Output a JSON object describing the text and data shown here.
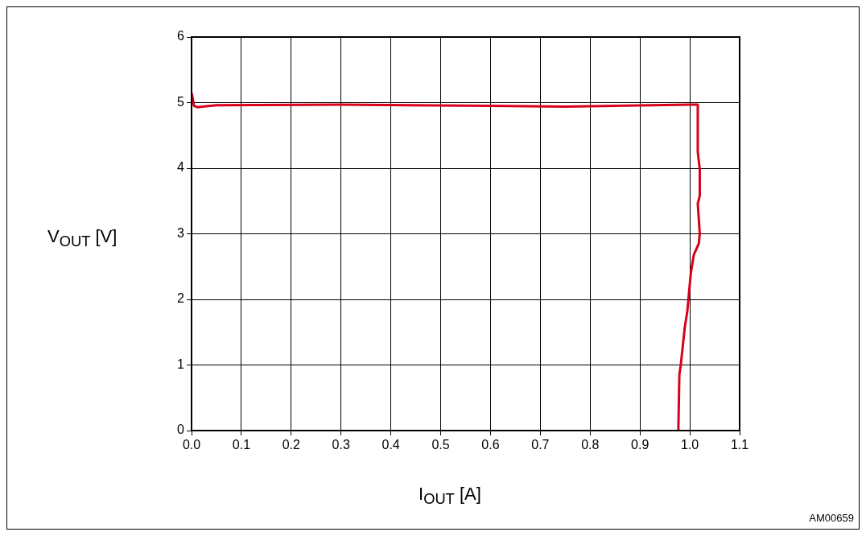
{
  "chart_data": {
    "type": "line",
    "xlabel": "I$_{OUT}$  [A]",
    "ylabel": "V$_{OUT}$  [V]",
    "annotations": [
      "AM00659"
    ],
    "xlim": [
      0,
      1.1
    ],
    "xticks": [
      {
        "value": 0,
        "label": "0.0"
      },
      0.1,
      0.2,
      0.3,
      0.4,
      0.5,
      0.6,
      0.7,
      0.8,
      0.9,
      {
        "value": 1,
        "label": "1.0"
      },
      1.1
    ],
    "ylim": [
      0,
      6
    ],
    "yticks": [
      0,
      1,
      2,
      3,
      4,
      5,
      6
    ],
    "grid": true,
    "marker": "none",
    "line_style": "solid",
    "series": [
      {
        "color": "#d9001b",
        "x": [
          0,
          0.005,
          0.012,
          0.05,
          0.3,
          0.6,
          0.75,
          1.0,
          1.016,
          1.016,
          1.02,
          1.02,
          1.016,
          1.02,
          1.018,
          1.008,
          1.002,
          0.995,
          0.99,
          0.982,
          0.979,
          0.977
        ],
        "values": [
          5.15,
          4.95,
          4.93,
          4.96,
          4.97,
          4.95,
          4.94,
          4.97,
          4.97,
          4.25,
          3.98,
          3.58,
          3.46,
          3.0,
          2.85,
          2.68,
          2.4,
          1.82,
          1.58,
          1.01,
          0.85,
          0
        ]
      }
    ]
  }
}
